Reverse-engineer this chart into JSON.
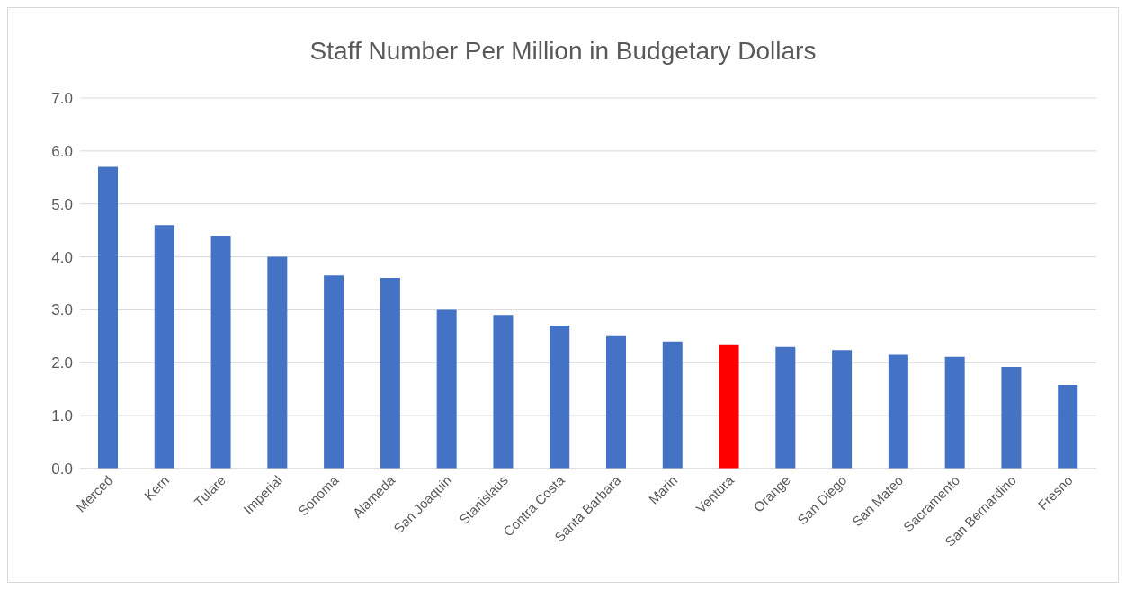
{
  "chart_data": {
    "type": "bar",
    "title": "Staff Number Per Million in Budgetary Dollars",
    "categories": [
      "Merced",
      "Kern",
      "Tulare",
      "Imperial",
      "Sonoma",
      "Alameda",
      "San Joaquin",
      "Stanislaus",
      "Contra Costa",
      "Santa Barbara",
      "Marin",
      "Ventura",
      "Orange",
      "San Diego",
      "San Mateo",
      "Sacramento",
      "San Bernardino",
      "Fresno"
    ],
    "values": [
      5.7,
      4.6,
      4.4,
      4.0,
      3.65,
      3.6,
      3.0,
      2.9,
      2.7,
      2.5,
      2.4,
      2.33,
      2.3,
      2.24,
      2.15,
      2.11,
      1.92,
      1.58
    ],
    "colors": [
      "#4472c4",
      "#4472c4",
      "#4472c4",
      "#4472c4",
      "#4472c4",
      "#4472c4",
      "#4472c4",
      "#4472c4",
      "#4472c4",
      "#4472c4",
      "#4472c4",
      "#ff0000",
      "#4472c4",
      "#4472c4",
      "#4472c4",
      "#4472c4",
      "#4472c4",
      "#4472c4"
    ],
    "ylim": [
      0,
      7
    ],
    "yticks": [
      {
        "value": 0,
        "label": "0.0"
      },
      {
        "value": 1,
        "label": "1.0"
      },
      {
        "value": 2,
        "label": "2.0"
      },
      {
        "value": 3,
        "label": "3.0"
      },
      {
        "value": 4,
        "label": "4.0"
      },
      {
        "value": 5,
        "label": "5.0"
      },
      {
        "value": 6,
        "label": "6.0"
      },
      {
        "value": 7,
        "label": "7.0"
      }
    ],
    "grid": "y"
  }
}
